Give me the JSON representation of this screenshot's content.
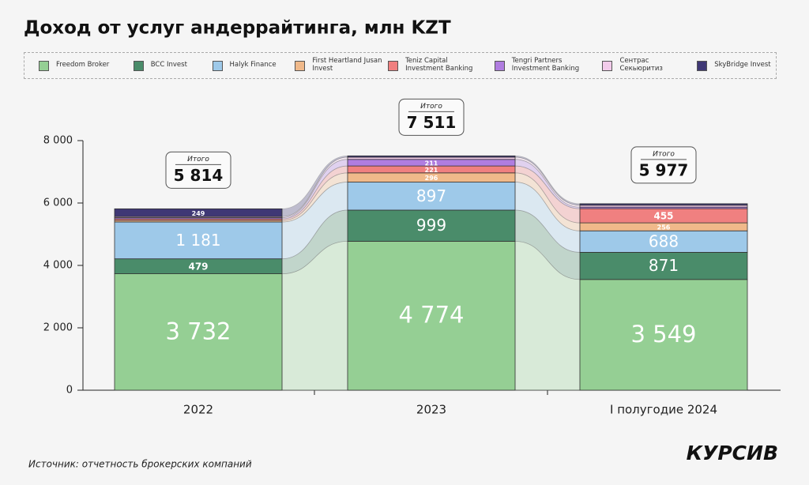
{
  "chart_data": {
    "type": "bar",
    "stacked": true,
    "title": "Доход от услуг андеррайтинга, млн KZT",
    "categories": [
      "2022",
      "2023",
      "I полугодие 2024"
    ],
    "series": [
      {
        "name": "Freedom Broker",
        "color": "#95cf94",
        "values": [
          3732,
          4774,
          3549
        ],
        "value_labels": [
          "3 732",
          "4 774",
          "3 549"
        ]
      },
      {
        "name": "BCC Invest",
        "color": "#4a8c6a",
        "values": [
          479,
          999,
          871
        ]
      },
      {
        "name": "Halyk Finance",
        "color": "#9ec9e9",
        "values": [
          1181,
          897,
          688
        ],
        "value_labels": [
          "1 181",
          "897",
          "688"
        ]
      },
      {
        "name": "First Heartland Jusan Invest",
        "color": "#f0b98a",
        "values": [
          50,
          296,
          256
        ],
        "value_labels": [
          null,
          "296",
          "256"
        ]
      },
      {
        "name": "Teniz Capital Investment Banking",
        "color": "#f08080",
        "values": [
          50,
          221,
          455
        ],
        "value_labels": [
          null,
          "221",
          "455"
        ]
      },
      {
        "name": "Tengri Partners Investment Banking",
        "color": "#b07de0",
        "values": [
          40,
          211,
          50
        ],
        "value_labels": [
          null,
          "211",
          null
        ]
      },
      {
        "name": "Сентрас Секьюритиз",
        "color": "#f2cbea",
        "values": [
          33,
          70,
          60
        ],
        "value_labels": [
          null,
          null,
          null
        ]
      },
      {
        "name": "SkyBridge Invest",
        "color": "#3f3875",
        "values": [
          249,
          43,
          48
        ],
        "value_labels": [
          "249",
          null,
          null
        ]
      }
    ],
    "total_title": "Итого",
    "totals": [
      5814,
      7511,
      5977
    ],
    "total_labels": [
      "5 814",
      "7 511",
      "5 977"
    ],
    "ylim": [
      0,
      8000
    ],
    "yticks": [
      0,
      {
        "value": 2000,
        "label": "2 000"
      },
      {
        "value": 4000,
        "label": "4 000"
      },
      {
        "value": 6000,
        "label": "6 000"
      },
      {
        "value": 8000,
        "label": "8 000"
      }
    ],
    "source": "Источник: отчетность брокерских компаний",
    "brand": "КУРСИВ"
  }
}
